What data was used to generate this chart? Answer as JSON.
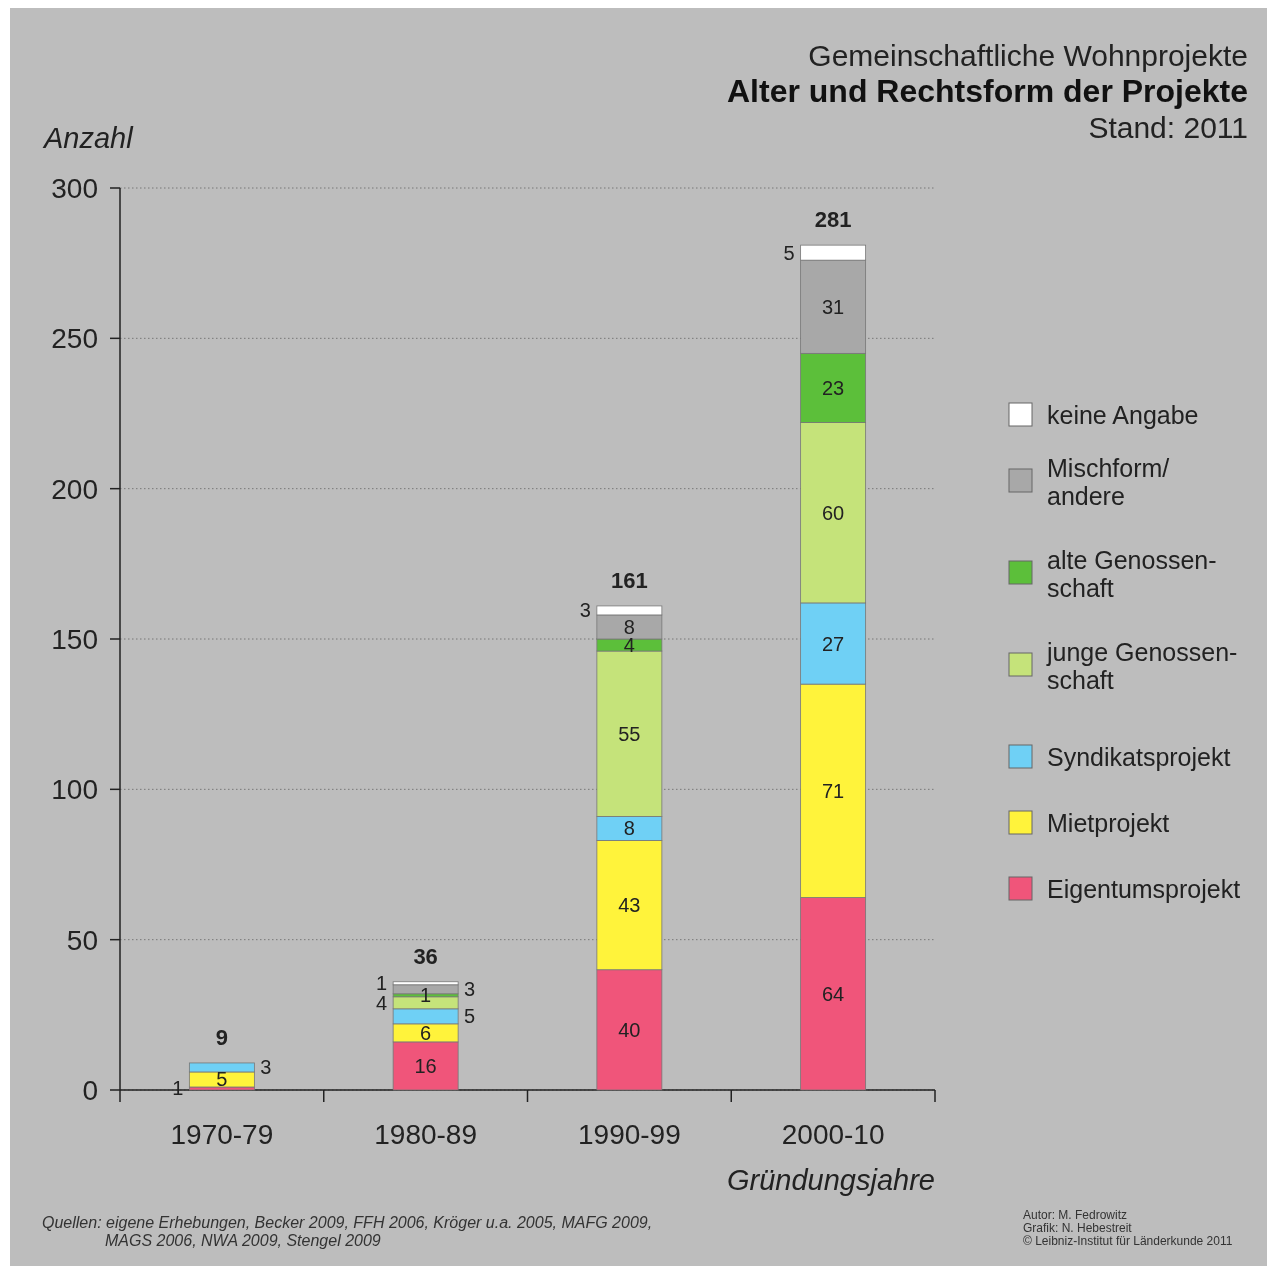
{
  "chart_data": {
    "type": "bar",
    "stacked": true,
    "title": "Gemeinschaftliche Wohnprojekte",
    "subtitle": "Alter und Rechtsform der Projekte",
    "ylabel": "Anzahl",
    "xlabel": "Gründungsjahre",
    "categories": [
      "1970-79",
      "1980-89",
      "1990-99",
      "2000-10"
    ],
    "series": [
      {
        "name": "Eigentumsprojekt",
        "color": "#f0557a",
        "values": [
          1,
          16,
          40,
          64
        ],
        "value_labels": [
          "1",
          "16",
          "40",
          "64"
        ]
      },
      {
        "name": "Mietprojekt",
        "color": "#fff33b",
        "values": [
          5,
          6,
          43,
          71
        ],
        "value_labels": [
          "5",
          "6",
          "43",
          "71"
        ]
      },
      {
        "name": "Syndikatsprojekt",
        "color": "#6fd0f5",
        "values": [
          3,
          5,
          8,
          27
        ],
        "value_labels": [
          "3",
          "5",
          "8",
          "27"
        ]
      },
      {
        "name": "junge Genossen-\nschaft",
        "color": "#c5e37a",
        "values": [
          0,
          4,
          55,
          60
        ],
        "value_labels": [
          null,
          "4",
          "55",
          "60"
        ]
      },
      {
        "name": "alte Genossen-\nschaft",
        "color": "#5cbf3a",
        "values": [
          0,
          1,
          4,
          23
        ],
        "value_labels": [
          null,
          "1",
          "4",
          "23"
        ]
      },
      {
        "name": "Mischform/\nandere",
        "color": "#a8a8a8",
        "values": [
          0,
          3,
          8,
          31
        ],
        "value_labels": [
          null,
          "3",
          "8",
          "31"
        ]
      },
      {
        "name": "keine Angabe",
        "color": "#ffffff",
        "values": [
          0,
          1,
          3,
          5
        ],
        "value_labels": [
          null,
          "1",
          "3",
          "5"
        ]
      }
    ],
    "totals": [
      "9",
      "36",
      "161",
      "281"
    ],
    "ylim": [
      0,
      300
    ],
    "yticks": [
      0,
      50,
      100,
      150,
      200,
      250,
      300
    ],
    "grid": "y",
    "legend": "right",
    "annotations": [
      "Stand: 2011",
      "Quellen: eigene Erhebungen, Becker 2009, FFH 2006, Kröger u.a. 2005, MAFG 2009,\nMAGS 2006, NWA 2009, Stengel 2009",
      "Autor: M. Fedrowitz\nGrafik: N. Hebestreit\n© Leibniz-Institut für Länderkunde 2011"
    ]
  }
}
